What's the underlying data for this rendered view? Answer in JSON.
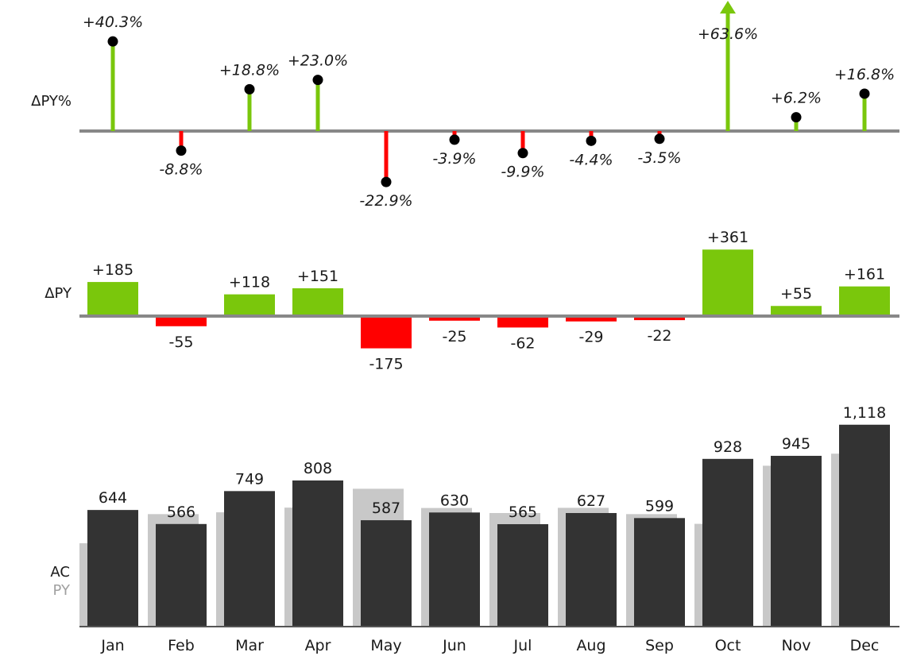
{
  "chart_data": {
    "type": "bar",
    "categories": [
      "Jan",
      "Feb",
      "Mar",
      "Apr",
      "May",
      "Jun",
      "Jul",
      "Aug",
      "Sep",
      "Oct",
      "Nov",
      "Dec"
    ],
    "series": [
      {
        "name": "AC",
        "values": [
          644,
          566,
          749,
          808,
          587,
          630,
          565,
          627,
          599,
          928,
          945,
          1118
        ]
      },
      {
        "name": "PY",
        "values": [
          459,
          621,
          631,
          657,
          762,
          655,
          627,
          656,
          621,
          567,
          890,
          957
        ]
      }
    ],
    "delta_py": [
      "+185",
      "-55",
      "+118",
      "+151",
      "-175",
      "-25",
      "-62",
      "-29",
      "-22",
      "+361",
      "+55",
      "+161"
    ],
    "delta_py_values": [
      185,
      -55,
      118,
      151,
      -175,
      -25,
      -62,
      -29,
      -22,
      361,
      55,
      161
    ],
    "delta_py_pct": [
      "+40.3%",
      "-8.8%",
      "+18.8%",
      "+23.0%",
      "-22.9%",
      "-3.9%",
      "-9.9%",
      "-4.4%",
      "-3.5%",
      "+63.6%",
      "+6.2%",
      "+16.8%"
    ],
    "delta_py_pct_values": [
      40.3,
      -8.8,
      18.8,
      23.0,
      -22.9,
      -3.9,
      -9.9,
      -4.4,
      -3.5,
      63.6,
      6.2,
      16.8
    ],
    "ac_labels": [
      "644",
      "566",
      "749",
      "808",
      "587",
      "630",
      "565",
      "627",
      "599",
      "928",
      "945",
      "1,118"
    ],
    "pct_axis_capped": [
      false,
      false,
      false,
      false,
      false,
      false,
      false,
      false,
      false,
      true,
      false,
      false
    ],
    "row_labels": {
      "pct": "ΔPY%",
      "abs": "ΔPY",
      "ac": "AC",
      "py": "PY"
    },
    "colors": {
      "positive": "#7ac70c",
      "negative": "#ff0000",
      "ac": "#333333",
      "py": "#c8c8c8",
      "axis": "#888888",
      "marker": "#000000"
    }
  }
}
